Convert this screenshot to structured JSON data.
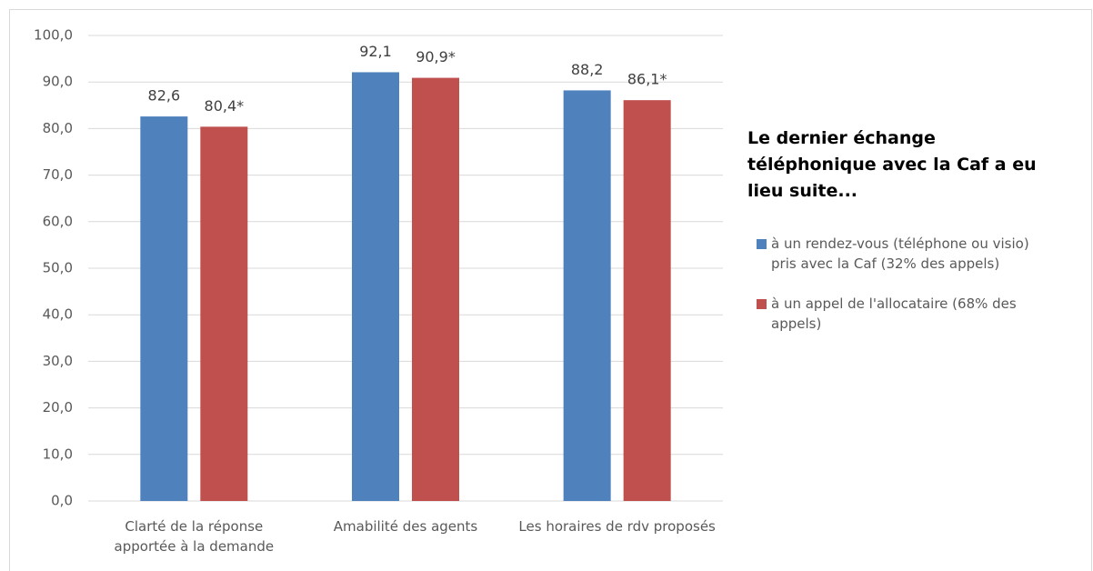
{
  "chart_data": {
    "type": "bar",
    "categories": [
      "Clarté de la réponse apportée à la demande",
      "Amabilité des agents",
      "Les horaires de rdv proposés"
    ],
    "series": [
      {
        "name": "à un rendez-vous (téléphone ou visio) pris avec la Caf (32% des appels)",
        "color": "#4f81bd",
        "values": [
          82.6,
          92.1,
          88.2
        ],
        "value_labels": [
          "82,6",
          "92,1",
          "88,2"
        ]
      },
      {
        "name": "à un appel de l'allocataire (68% des appels)",
        "color": "#c0504d",
        "values": [
          80.4,
          90.9,
          86.1
        ],
        "value_labels": [
          "80,4*",
          "90,9*",
          "86,1*"
        ]
      }
    ],
    "legend_title": "Le dernier échange téléphonique avec la Caf a eu lieu suite...",
    "ylim": [
      0,
      100
    ],
    "yticks": [
      {
        "value": 0,
        "label": "0,0"
      },
      {
        "value": 10,
        "label": "10,0"
      },
      {
        "value": 20,
        "label": "20,0"
      },
      {
        "value": 30,
        "label": "30,0"
      },
      {
        "value": 40,
        "label": "40,0"
      },
      {
        "value": 50,
        "label": "50,0"
      },
      {
        "value": 60,
        "label": "60,0"
      },
      {
        "value": 70,
        "label": "70,0"
      },
      {
        "value": 80,
        "label": "80,0"
      },
      {
        "value": 90,
        "label": "90,0"
      },
      {
        "value": 100,
        "label": "100,0"
      }
    ],
    "grid": true,
    "legend": "right"
  }
}
